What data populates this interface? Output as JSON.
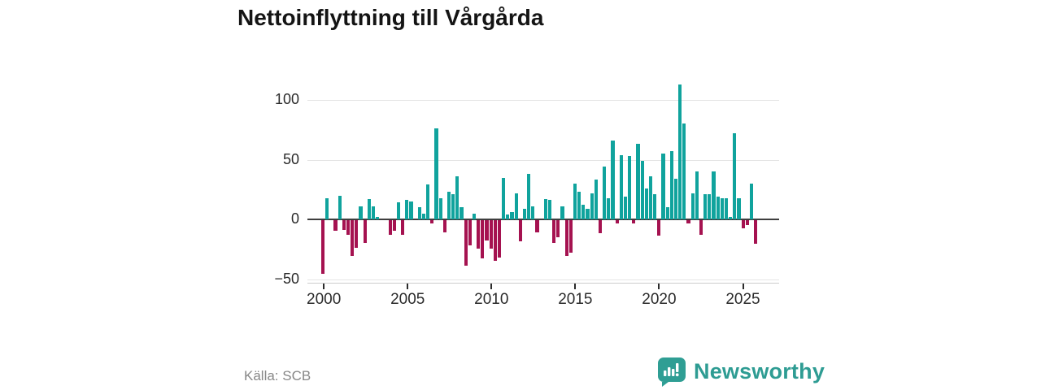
{
  "title": "Nettoinflyttning till Vårgårda",
  "source": "Källa: SCB",
  "logo": {
    "text": "Newsworthy"
  },
  "colors": {
    "positive": "#10a39d",
    "negative": "#a51250",
    "grid": "#e4e4e4",
    "zero_line": "#3e3e3e",
    "axis_text": "#2b2b2b",
    "title_text": "#141414",
    "source_text": "#878787",
    "logo_teal": "#2f9e94",
    "background": "#ffffff"
  },
  "chart_data": {
    "type": "bar",
    "title": "Nettoinflyttning till Vårgårda",
    "xlabel": "",
    "ylabel": "",
    "ylim": [
      -55,
      115
    ],
    "yticks": [
      100,
      50,
      0,
      -50
    ],
    "ytick_labels": [
      "100",
      "50",
      "0",
      "−50"
    ],
    "xtick_labels": [
      "2000",
      "2005",
      "2010",
      "2015",
      "2020",
      "2025"
    ],
    "grid": true,
    "legend": false,
    "x_frequency": "quarterly",
    "x": [
      "2000Q1",
      "2000Q2",
      "2000Q3",
      "2000Q4",
      "2001Q1",
      "2001Q2",
      "2001Q3",
      "2001Q4",
      "2002Q1",
      "2002Q2",
      "2002Q3",
      "2002Q4",
      "2003Q1",
      "2003Q2",
      "2003Q3",
      "2003Q4",
      "2004Q1",
      "2004Q2",
      "2004Q3",
      "2004Q4",
      "2005Q1",
      "2005Q2",
      "2005Q3",
      "2005Q4",
      "2006Q1",
      "2006Q2",
      "2006Q3",
      "2006Q4",
      "2007Q1",
      "2007Q2",
      "2007Q3",
      "2007Q4",
      "2008Q1",
      "2008Q2",
      "2008Q3",
      "2008Q4",
      "2009Q1",
      "2009Q2",
      "2009Q3",
      "2009Q4",
      "2010Q1",
      "2010Q2",
      "2010Q3",
      "2010Q4",
      "2011Q1",
      "2011Q2",
      "2011Q3",
      "2011Q4",
      "2012Q1",
      "2012Q2",
      "2012Q3",
      "2012Q4",
      "2013Q1",
      "2013Q2",
      "2013Q3",
      "2013Q4",
      "2014Q1",
      "2014Q2",
      "2014Q3",
      "2014Q4",
      "2015Q1",
      "2015Q2",
      "2015Q3",
      "2015Q4",
      "2016Q1",
      "2016Q2",
      "2016Q3",
      "2016Q4",
      "2017Q1",
      "2017Q2",
      "2017Q3",
      "2017Q4",
      "2018Q1",
      "2018Q2",
      "2018Q3",
      "2018Q4",
      "2019Q1",
      "2019Q2",
      "2019Q3",
      "2019Q4",
      "2020Q1",
      "2020Q2",
      "2020Q3",
      "2020Q4",
      "2021Q1",
      "2021Q2",
      "2021Q3",
      "2021Q4",
      "2022Q1",
      "2022Q2",
      "2022Q3",
      "2022Q4",
      "2023Q1",
      "2023Q2",
      "2023Q3",
      "2023Q4",
      "2024Q1",
      "2024Q2",
      "2024Q3",
      "2024Q4",
      "2025Q1",
      "2025Q2",
      "2025Q3",
      "2025Q4"
    ],
    "values": [
      -45,
      18,
      0,
      -9,
      20,
      -8,
      -12,
      -30,
      -23,
      11,
      -19,
      17,
      11,
      2,
      0,
      0,
      -12,
      -9,
      14,
      -12,
      16,
      15,
      0,
      10,
      5,
      29,
      -3,
      76,
      18,
      -10,
      23,
      21,
      36,
      10,
      -38,
      -21,
      5,
      -24,
      -32,
      -17,
      -24,
      -34,
      -31,
      35,
      4,
      6,
      22,
      -18,
      9,
      38,
      11,
      -10,
      0,
      17,
      16,
      -19,
      -14,
      11,
      -30,
      -27,
      30,
      23,
      12,
      9,
      22,
      33,
      -11,
      44,
      18,
      66,
      -3,
      54,
      19,
      53,
      -3,
      63,
      49,
      26,
      36,
      21,
      -13,
      55,
      10,
      57,
      34,
      113,
      80,
      -3,
      22,
      40,
      -12,
      21,
      21,
      40,
      19,
      18,
      18,
      2,
      72,
      18,
      -7,
      -4,
      30,
      -20
    ]
  }
}
